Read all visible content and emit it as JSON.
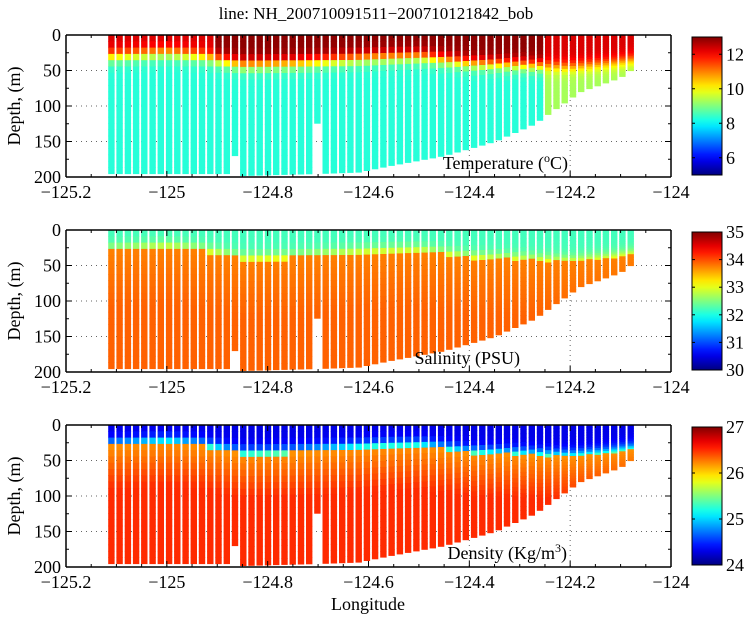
{
  "chart_data": {
    "type": "heatmap",
    "title": "line: NH_200710091511−200710121842_bob",
    "xlabel": "Longitude",
    "xlim": [
      -125.2,
      -124
    ],
    "xticks": [
      -125.2,
      -125,
      -124.8,
      -124.6,
      -124.4,
      -124.2,
      -124
    ],
    "xtick_labels": [
      "−125.2",
      "−125",
      "−124.8",
      "−124.6",
      "−124.4",
      "−124.2",
      "−124"
    ],
    "grid": true,
    "colormap": "jet",
    "data_extent": {
      "lon_min": -125.11,
      "lon_max": -124.08
    },
    "bottom_profile": {
      "lon": [
        -125.11,
        -124.87,
        -124.86,
        -124.7,
        -124.62,
        -124.55,
        -124.45,
        -124.35,
        -124.27,
        -124.22,
        -124.18,
        -124.14,
        -124.1,
        -124.08
      ],
      "depth": [
        195,
        195,
        198,
        195,
        193,
        183,
        170,
        150,
        125,
        100,
        80,
        70,
        60,
        50
      ]
    },
    "gaps": [
      {
        "lon": -124.87,
        "depth_top": 165,
        "depth_bottom": 200
      },
      {
        "lon": -124.7,
        "depth_top": 120,
        "depth_bottom": 200
      }
    ],
    "panels": [
      {
        "name": "temperature",
        "label": "Temperature (",
        "label_sup": "o",
        "label_unit": "C)",
        "ylabel": "Depth, (m)",
        "ylim": [
          0,
          200
        ],
        "yticks": [
          0,
          50,
          100,
          150,
          200
        ],
        "ytick_labels": [
          "0",
          "50",
          "100",
          "150",
          "200"
        ],
        "clim": [
          5,
          13
        ],
        "cticks": [
          6,
          8,
          10,
          12
        ],
        "ctick_labels": [
          "6",
          "8",
          "10",
          "12"
        ],
        "mixed_layer": {
          "lon": [
            -125.11,
            -125.0,
            -124.93,
            -124.85,
            -124.75,
            -124.6,
            -124.5,
            -124.4,
            -124.3,
            -124.2,
            -124.12,
            -124.08
          ],
          "depth": [
            30,
            25,
            30,
            42,
            40,
            32,
            30,
            40,
            42,
            45,
            40,
            35
          ]
        },
        "surface_value": 12.3,
        "deep_value": 8.3,
        "surface_dark_value": 12.9,
        "description": "Warm surface layer (~12-13°C) over a sharp thermocline at ~30-45 m; cool water (~8-9°C) below."
      },
      {
        "name": "salinity",
        "label": "Salinity (PSU)",
        "ylabel": "Depth, (m)",
        "ylim": [
          0,
          200
        ],
        "yticks": [
          0,
          50,
          100,
          150,
          200
        ],
        "ytick_labels": [
          "0",
          "50",
          "100",
          "150",
          "200"
        ],
        "clim": [
          30,
          35
        ],
        "cticks": [
          30,
          31,
          32,
          33,
          34,
          35
        ],
        "ctick_labels": [
          "30",
          "31",
          "32",
          "33",
          "34",
          "35"
        ],
        "surface_value": 32.2,
        "deep_value": 33.9,
        "description": "Fresher surface (~32 PSU) increasing to ~33.8-34 PSU at depth."
      },
      {
        "name": "density",
        "label": "Density (Kg/m",
        "label_sup": "3",
        "label_unit": ")",
        "ylabel": "Depth, (m)",
        "ylim": [
          0,
          200
        ],
        "yticks": [
          0,
          50,
          100,
          150,
          200
        ],
        "ytick_labels": [
          "0",
          "50",
          "100",
          "150",
          "200"
        ],
        "clim": [
          24,
          27
        ],
        "cticks": [
          24,
          25,
          26,
          27
        ],
        "ctick_labels": [
          "24",
          "25",
          "26",
          "27"
        ],
        "surface_value": 24.3,
        "deep_value": 26.5,
        "description": "Light surface water (~24-24.5) over dense water (~26.3-26.6) at depth."
      }
    ]
  }
}
